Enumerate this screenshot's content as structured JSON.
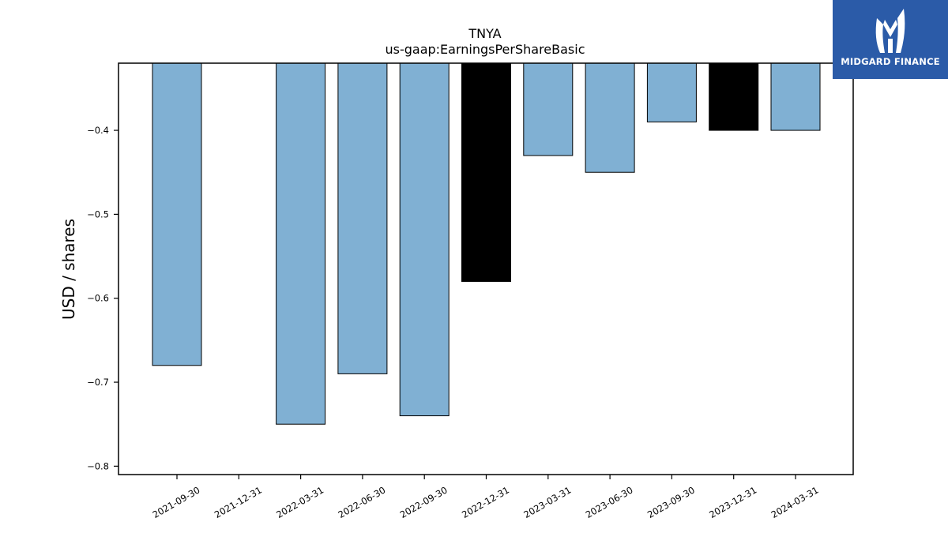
{
  "chart_data": {
    "type": "bar",
    "title": "TNYA",
    "subtitle": "us-gaap:EarningsPerShareBasic",
    "xlabel": "",
    "ylabel": "USD / shares",
    "categories": [
      "2021-09-30",
      "2021-12-31",
      "2022-03-31",
      "2022-06-30",
      "2022-09-30",
      "2022-12-31",
      "2023-03-31",
      "2023-06-30",
      "2023-09-30",
      "2023-12-31",
      "2024-03-31"
    ],
    "values": [
      -0.68,
      null,
      -0.75,
      -0.69,
      -0.74,
      -0.58,
      -0.43,
      -0.45,
      -0.39,
      -0.4,
      -0.4
    ],
    "highlight": [
      false,
      false,
      false,
      false,
      false,
      true,
      false,
      false,
      false,
      true,
      false
    ],
    "ylim": [
      -0.81,
      -0.32
    ],
    "yticks": [
      -0.8,
      -0.7,
      -0.6,
      -0.5,
      -0.4
    ],
    "ytick_labels": [
      "−0.8",
      "−0.7",
      "−0.6",
      "−0.5",
      "−0.4"
    ],
    "grid": false,
    "legend": "none",
    "colors": {
      "bar": "#80b0d3",
      "highlight": "#000000",
      "edge": "#000000"
    }
  },
  "logo": {
    "text": "MIDGARD FINANCE",
    "icon": "midgard-m-logo-icon",
    "background": "#2b5ba8"
  }
}
